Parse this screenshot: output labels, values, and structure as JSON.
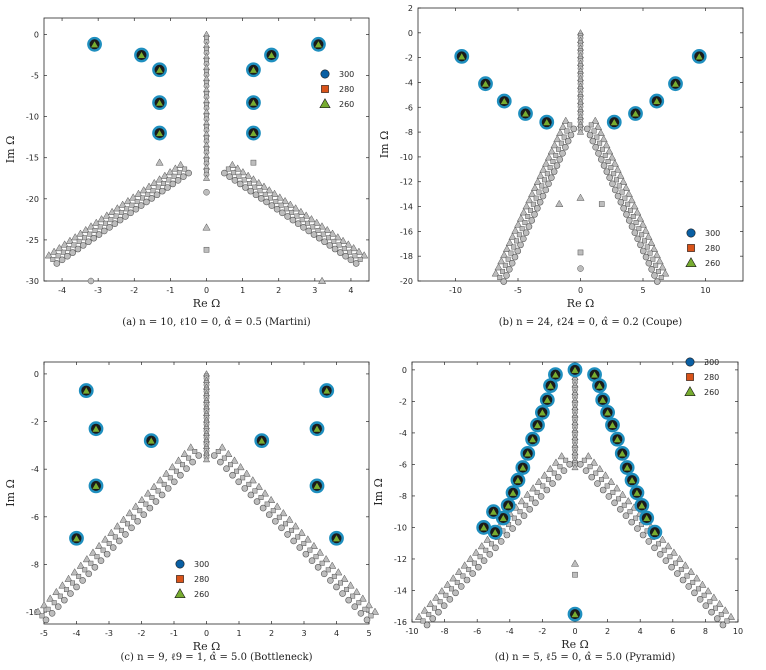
{
  "legend": [
    {
      "label": "300",
      "marker": "circle",
      "color": "#0a5fa3"
    },
    {
      "label": "280",
      "marker": "square",
      "color": "#d95319"
    },
    {
      "label": "260",
      "marker": "triangle",
      "color": "#77ac30"
    }
  ],
  "colors": {
    "highlight_ring": "#1f8fbf",
    "highlight_fill": "#77ac30",
    "gray_fill": "#bdbdbd",
    "gray_stroke": "#555555"
  },
  "chart_data": [
    {
      "panel": "a",
      "type": "scatter",
      "caption": "(a) n = 10, ℓ10 = 0, α̂ = 0.5 (Martini)",
      "xlabel": "Re Ω",
      "ylabel": "Im Ω",
      "xlim": [
        -4.5,
        4.5
      ],
      "ylim": [
        -30,
        2
      ],
      "xticks": [
        -4,
        -3,
        -2,
        -1,
        0,
        1,
        2,
        3,
        4
      ],
      "yticks": [
        0,
        -5,
        -10,
        -15,
        -20,
        -25,
        -30
      ],
      "xtick_labels": [
        "-4",
        "-3",
        "-2",
        "-1",
        "0",
        "1",
        "2",
        "3",
        "4"
      ],
      "ytick_labels": [
        "0",
        "-5",
        "-10",
        "-15",
        "-20",
        "-25",
        "-30"
      ],
      "legend_position": "right",
      "highlighted_modes": [
        [
          -3.1,
          -1.2
        ],
        [
          -1.8,
          -2.5
        ],
        [
          -1.3,
          -4.3
        ],
        [
          -1.3,
          -8.3
        ],
        [
          -1.3,
          -12.0
        ],
        [
          1.3,
          -4.3
        ],
        [
          1.3,
          -8.3
        ],
        [
          1.3,
          -12.0
        ],
        [
          1.8,
          -2.5
        ],
        [
          3.1,
          -1.2
        ]
      ],
      "cluster": {
        "top": [
          0,
          0
        ],
        "branch_start": [
          0.55,
          -16.5
        ],
        "branch_end": [
          4.2,
          -27.5
        ],
        "column_bottom": -17.5
      },
      "isolated_modes": [
        [
          -1.3,
          -15.6
        ],
        [
          1.3,
          -15.6
        ],
        [
          0,
          -19.2
        ],
        [
          0,
          -23.5
        ],
        [
          0,
          -26.2
        ],
        [
          -3.2,
          -30.0
        ],
        [
          3.2,
          -30.0
        ]
      ]
    },
    {
      "panel": "b",
      "type": "scatter",
      "caption": "(b) n = 24, ℓ24 = 0, α̂ = 0.2 (Coupe)",
      "xlabel": "Re Ω",
      "ylabel": "Im Ω",
      "xlim": [
        -13,
        13
      ],
      "ylim": [
        -20,
        2
      ],
      "xticks": [
        -10,
        -5,
        0,
        5,
        10
      ],
      "yticks": [
        2,
        0,
        -2,
        -4,
        -6,
        -8,
        -10,
        -12,
        -14,
        -16,
        -18,
        -20
      ],
      "xtick_labels": [
        "-10",
        "-5",
        "0",
        "5",
        "10"
      ],
      "ytick_labels": [
        "2",
        "0",
        "-2",
        "-4",
        "-6",
        "-8",
        "-10",
        "-12",
        "-14",
        "-16",
        "-18",
        "-20"
      ],
      "legend_position": "lower-right",
      "highlighted_modes": [
        [
          -9.5,
          -1.9
        ],
        [
          -7.6,
          -4.1
        ],
        [
          -6.1,
          -5.5
        ],
        [
          -4.4,
          -6.5
        ],
        [
          -2.7,
          -7.2
        ],
        [
          2.7,
          -7.2
        ],
        [
          4.4,
          -6.5
        ],
        [
          6.1,
          -5.5
        ],
        [
          7.6,
          -4.1
        ],
        [
          9.5,
          -1.9
        ]
      ],
      "cluster": {
        "top": [
          0,
          0
        ],
        "branch_start": [
          0.7,
          -7.5
        ],
        "branch_end": [
          6.3,
          -19.8
        ],
        "column_bottom": -8.0
      },
      "isolated_modes": [
        [
          0,
          -13.3
        ],
        [
          0,
          -17.7
        ],
        [
          0,
          -19.0
        ],
        [
          -1.7,
          -13.8
        ],
        [
          1.7,
          -13.8
        ]
      ]
    },
    {
      "panel": "c",
      "type": "scatter",
      "caption": "(c) n = 9, ℓ9 = 1, α̂ = 5.0 (Bottleneck)",
      "xlabel": "Re Ω",
      "ylabel": "Im Ω",
      "xlim": [
        -5,
        5
      ],
      "ylim": [
        -10.5,
        0.5
      ],
      "xticks": [
        -5,
        -4,
        -3,
        -2,
        -1,
        0,
        1,
        2,
        3,
        4,
        5
      ],
      "yticks": [
        0,
        -2,
        -4,
        -6,
        -8,
        -10
      ],
      "xtick_labels": [
        "-5",
        "-4",
        "-3",
        "-2",
        "-1",
        "0",
        "1",
        "2",
        "3",
        "4",
        "5"
      ],
      "ytick_labels": [
        "0",
        "-2",
        "-4",
        "-6",
        "-8",
        "-10"
      ],
      "legend_position": "lower-center",
      "highlighted_modes": [
        [
          -3.7,
          -0.7
        ],
        [
          -3.4,
          -2.3
        ],
        [
          -3.4,
          -4.7
        ],
        [
          -1.7,
          -2.8
        ],
        [
          -4.0,
          -6.9
        ],
        [
          1.7,
          -2.8
        ],
        [
          3.4,
          -2.3
        ],
        [
          3.4,
          -4.7
        ],
        [
          3.7,
          -0.7
        ],
        [
          4.0,
          -6.9
        ]
      ],
      "cluster": {
        "top": [
          0,
          0
        ],
        "branch_start": [
          0.3,
          -3.3
        ],
        "branch_end": [
          5.0,
          -10.2
        ],
        "column_bottom": -3.6
      },
      "isolated_modes": []
    },
    {
      "panel": "d",
      "type": "scatter",
      "caption": "(d) n = 5, ℓ5 = 0, α̂ = 5.0 (Pyramid)",
      "xlabel": "Re Ω",
      "ylabel": "Im Ω",
      "xlim": [
        -10,
        10
      ],
      "ylim": [
        -16,
        0.5
      ],
      "xticks": [
        -10,
        -8,
        -6,
        -4,
        -2,
        0,
        2,
        4,
        6,
        8,
        10
      ],
      "yticks": [
        0,
        -2,
        -4,
        -6,
        -8,
        -10,
        -12,
        -14,
        -16
      ],
      "xtick_labels": [
        "-10",
        "-8",
        "-6",
        "-4",
        "-2",
        "0",
        "2",
        "4",
        "6",
        "8",
        "10"
      ],
      "ytick_labels": [
        "0",
        "-2",
        "-4",
        "-6",
        "-8",
        "-10",
        "-12",
        "-14",
        "-16"
      ],
      "legend_position": "top-right",
      "highlighted_modes": [
        [
          0,
          0
        ],
        [
          0,
          -15.5
        ],
        [
          -1.2,
          -0.3
        ],
        [
          -1.5,
          -1.0
        ],
        [
          -1.7,
          -1.9
        ],
        [
          -2.0,
          -2.7
        ],
        [
          -2.3,
          -3.5
        ],
        [
          -2.6,
          -4.4
        ],
        [
          -2.9,
          -5.3
        ],
        [
          -3.2,
          -6.2
        ],
        [
          -3.5,
          -7.0
        ],
        [
          -3.8,
          -7.8
        ],
        [
          -4.1,
          -8.6
        ],
        [
          -4.4,
          -9.4
        ],
        [
          -4.9,
          -10.3
        ],
        [
          -5.6,
          -10.0
        ],
        [
          -5.0,
          -9.0
        ],
        [
          1.2,
          -0.3
        ],
        [
          1.5,
          -1.0
        ],
        [
          1.7,
          -1.9
        ],
        [
          2.0,
          -2.7
        ],
        [
          2.3,
          -3.5
        ],
        [
          2.6,
          -4.4
        ],
        [
          2.9,
          -5.3
        ],
        [
          3.2,
          -6.2
        ],
        [
          3.5,
          -7.0
        ],
        [
          3.8,
          -7.8
        ],
        [
          4.1,
          -8.6
        ],
        [
          4.4,
          -9.4
        ],
        [
          4.9,
          -10.3
        ]
      ],
      "cluster": {
        "top": [
          0,
          0
        ],
        "branch_start": [
          0.45,
          -5.8
        ],
        "branch_end": [
          9.2,
          -16.0
        ],
        "column_bottom": -6.2
      },
      "isolated_modes": [
        [
          0,
          -12.3
        ],
        [
          0,
          -13.0
        ]
      ]
    }
  ]
}
